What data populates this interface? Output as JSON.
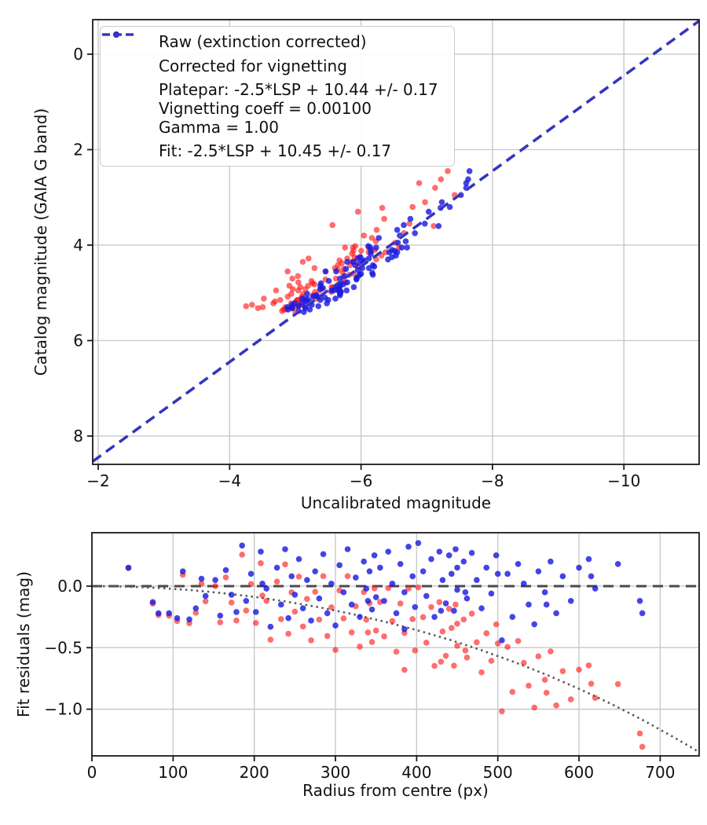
{
  "figure": {
    "background": "#ffffff"
  },
  "colors": {
    "raw_marker": "#ff1414",
    "raw_alpha": 0.62,
    "corrected_marker": "#1b1be0",
    "corrected_alpha": 0.82,
    "fit_line": "#3232c8",
    "platepar_line": "#999999",
    "zero_line": "#4a4a4a",
    "model_curve": "#5a5a5a",
    "grid": "#c9c9c9",
    "spine": "#1a1a1a",
    "text": "#111111"
  },
  "stars": {
    "radius": [
      45,
      75,
      82,
      95,
      105,
      112,
      120,
      128,
      135,
      140,
      152,
      158,
      165,
      172,
      178,
      185,
      190,
      196,
      202,
      208,
      215,
      220,
      228,
      233,
      238,
      242,
      246,
      250,
      210,
      255,
      260,
      265,
      270,
      275,
      280,
      285,
      290,
      295,
      300,
      305,
      310,
      315,
      320,
      325,
      330,
      335,
      338,
      342,
      345,
      348,
      350,
      340,
      355,
      360,
      365,
      370,
      375,
      380,
      385,
      390,
      395,
      398,
      402,
      408,
      412,
      418,
      422,
      428,
      432,
      436,
      440,
      443,
      446,
      448,
      450,
      450,
      385,
      430,
      458,
      462,
      468,
      474,
      480,
      486,
      492,
      498,
      505,
      512,
      518,
      525,
      532,
      538,
      545,
      550,
      460,
      500,
      558,
      565,
      572,
      580,
      590,
      600,
      612,
      615,
      648,
      675,
      678,
      560,
      620
    ],
    "catalog_mag": [
      4.62,
      4.9,
      4.35,
      5.12,
      4.05,
      4.78,
      5.3,
      4.5,
      3.95,
      5.05,
      4.88,
      5.22,
      4.15,
      4.7,
      5.35,
      3.6,
      4.42,
      5.1,
      4.25,
      4.95,
      5.28,
      3.85,
      4.6,
      5.15,
      4.05,
      4.8,
      5.4,
      4.35,
      2.95,
      4.98,
      4.12,
      5.25,
      4.55,
      3.75,
      5.08,
      4.3,
      4.85,
      5.32,
      4.02,
      4.68,
      5.18,
      4.22,
      4.92,
      3.55,
      5.02,
      4.45,
      5.38,
      4.1,
      4.75,
      5.22,
      4.38,
      3.1,
      4.95,
      4.18,
      5.12,
      4.52,
      3.68,
      5.28,
      4.28,
      4.88,
      5.15,
      4.05,
      4.62,
      5.35,
      4.32,
      4.98,
      3.45,
      5.05,
      4.48,
      5.22,
      4.15,
      4.82,
      5.3,
      4.58,
      3.92,
      5.08,
      2.45,
      2.62,
      4.72,
      5.18,
      4.25,
      4.95,
      5.32,
      4.42,
      3.8,
      5.02,
      4.55,
      4.88,
      5.25,
      4.12,
      4.78,
      5.12,
      4.35,
      4.92,
      2.8,
      3.2,
      4.65,
      5.15,
      4.28,
      4.85,
      5.28,
      4.48,
      4.05,
      4.95,
      4.7,
      3.3,
      3.58,
      2.7,
      3.22
    ],
    "resid_corrected": [
      0.15,
      -0.13,
      -0.22,
      -0.22,
      -0.26,
      0.12,
      -0.27,
      -0.18,
      0.06,
      -0.08,
      0.05,
      -0.24,
      0.13,
      -0.07,
      -0.21,
      0.33,
      -0.12,
      0.1,
      -0.21,
      0.28,
      -0.02,
      -0.33,
      0.15,
      -0.15,
      0.3,
      -0.26,
      0.08,
      -0.07,
      0.02,
      0.22,
      -0.18,
      0.05,
      -0.28,
      0.12,
      -0.1,
      0.26,
      -0.22,
      0.02,
      -0.32,
      0.17,
      -0.05,
      0.3,
      -0.15,
      0.07,
      -0.25,
      0.2,
      -0.02,
      0.12,
      -0.19,
      0.25,
      -0.09,
      -0.12,
      0.15,
      -0.12,
      0.28,
      0.02,
      -0.22,
      0.18,
      -0.05,
      0.32,
      0.08,
      -0.17,
      0.35,
      0.12,
      -0.08,
      0.22,
      -0.25,
      0.28,
      0.05,
      -0.14,
      0.25,
      0.1,
      -0.2,
      0.3,
      0.15,
      -0.03,
      -0.35,
      -0.2,
      0.2,
      -0.1,
      0.27,
      0.05,
      -0.18,
      0.15,
      -0.06,
      0.25,
      -0.44,
      0.1,
      -0.25,
      0.18,
      0.02,
      -0.15,
      -0.31,
      0.12,
      -0.05,
      0.1,
      -0.05,
      0.2,
      -0.22,
      0.08,
      -0.12,
      0.15,
      0.22,
      0.08,
      0.18,
      -0.12,
      -0.22,
      -0.15,
      -0.02
    ],
    "resid_raw": [
      0.146,
      -0.142,
      -0.235,
      -0.24,
      -0.284,
      0.093,
      -0.301,
      -0.216,
      0.02,
      -0.123,
      0.0,
      -0.294,
      0.071,
      -0.134,
      -0.279,
      0.256,
      -0.198,
      0.017,
      -0.299,
      0.186,
      -0.12,
      -0.435,
      0.037,
      -0.268,
      0.177,
      -0.387,
      -0.051,
      -0.207,
      -0.076,
      0.077,
      -0.328,
      -0.104,
      -0.44,
      -0.046,
      -0.272,
      0.081,
      -0.405,
      -0.172,
      -0.518,
      -0.035,
      -0.262,
      0.081,
      -0.376,
      -0.163,
      -0.491,
      -0.048,
      -0.273,
      -0.139,
      -0.454,
      -0.018,
      -0.361,
      -0.376,
      -0.129,
      -0.408,
      -0.016,
      -0.284,
      -0.533,
      -0.141,
      -0.38,
      -0.019,
      -0.268,
      -0.523,
      -0.01,
      -0.252,
      -0.459,
      -0.17,
      -0.648,
      -0.13,
      -0.368,
      -0.566,
      -0.184,
      -0.34,
      -0.646,
      -0.15,
      -0.305,
      -0.485,
      -0.68,
      -0.614,
      -0.271,
      -0.58,
      -0.223,
      -0.456,
      -0.7,
      -0.383,
      -0.607,
      -0.311,
      -1.017,
      -0.494,
      -0.859,
      -0.446,
      -0.624,
      -0.809,
      -0.987,
      -0.57,
      -0.523,
      -0.466,
      -0.761,
      -0.53,
      -0.969,
      -0.691,
      -0.92,
      -0.679,
      -0.644,
      -0.793,
      -0.796,
      -1.197,
      -1.305,
      -0.866,
      -0.908
    ]
  },
  "chart_data": [
    {
      "type": "scatter",
      "title": "",
      "xlabel": "Uncalibrated magnitude",
      "ylabel": "Catalog magnitude (GAIA G band)",
      "x_inverted": true,
      "y_inverted": true,
      "xlim": [
        -1.916,
        -11.145
      ],
      "ylim": [
        -0.724,
        8.593
      ],
      "grid": true,
      "x_ticks": {
        "values": [
          -2,
          -4,
          -6,
          -8,
          -10
        ],
        "labels": [
          "−2",
          "−4",
          "−6",
          "−8",
          "−10"
        ]
      },
      "y_ticks": {
        "values": [
          0,
          2,
          4,
          6,
          8
        ],
        "labels": [
          "0",
          "2",
          "4",
          "6",
          "8"
        ]
      },
      "series_note": "point coords derive from stars: x = catalog_mag - 10.45 - resid, y = catalog_mag",
      "fit_lines": [
        {
          "name": "platepar",
          "slope": 1,
          "intercept": 10.44,
          "uncertainty": 0.17
        },
        {
          "name": "fit",
          "slope": 1,
          "intercept": 10.45,
          "uncertainty": 0.17
        }
      ],
      "legend": {
        "position": "upper left",
        "items": [
          {
            "label": "Raw (extinction corrected)"
          },
          {
            "label": "Corrected for vignetting"
          },
          {
            "lines": [
              "Platepar: -2.5*LSP + 10.44 +/- 0.17",
              "Vignetting coeff = 0.00100",
              "Gamma = 1.00"
            ]
          },
          {
            "label": "Fit: -2.5*LSP + 10.45 +/- 0.17"
          }
        ]
      }
    },
    {
      "type": "scatter",
      "title": "",
      "xlabel": "Radius from centre (px)",
      "ylabel": "Fit residuals (mag)",
      "xlim": [
        0,
        748
      ],
      "ylim": [
        -1.379,
        0.434
      ],
      "grid": true,
      "x_ticks": {
        "values": [
          0,
          100,
          200,
          300,
          400,
          500,
          600,
          700
        ],
        "labels": [
          "0",
          "100",
          "200",
          "300",
          "400",
          "500",
          "600",
          "700"
        ]
      },
      "y_ticks": {
        "values": [
          0.0,
          -0.5,
          -1.0
        ],
        "labels": [
          "0.0",
          "−0.5",
          "−1.0"
        ]
      },
      "zero_line": 0.0,
      "model_curve": {
        "name": "vignetting model",
        "r": [
          0,
          40,
          80,
          120,
          160,
          200,
          240,
          280,
          320,
          360,
          400,
          440,
          480,
          520,
          560,
          600,
          640,
          680,
          720,
          748
        ],
        "resid": [
          0,
          -0.003,
          -0.014,
          -0.031,
          -0.056,
          -0.087,
          -0.126,
          -0.172,
          -0.226,
          -0.288,
          -0.357,
          -0.434,
          -0.521,
          -0.616,
          -0.72,
          -0.834,
          -0.958,
          -1.093,
          -1.24,
          -1.348
        ]
      }
    }
  ]
}
